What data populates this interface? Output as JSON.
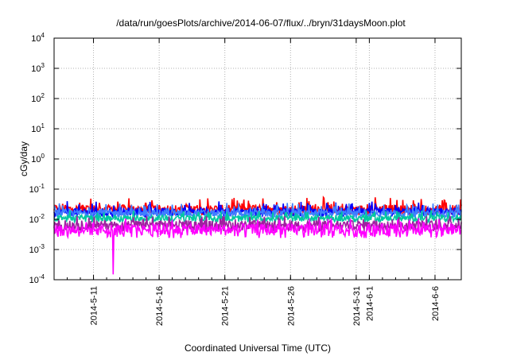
{
  "chart_data": {
    "type": "line",
    "title": "/data/run/goesPlots/archive/2014-06-07/flux/../bryn/31daysMoon.plot",
    "xlabel": "Coordinated Universal Time (UTC)",
    "ylabel": "cGy/day",
    "y_scale": "log",
    "ylim": [
      0.0001,
      10000
    ],
    "xlim": [
      "2014-05-08",
      "2014-06-08"
    ],
    "grid": true,
    "legend": "none",
    "y_ticks": [
      {
        "base": "10",
        "exp": "-4"
      },
      {
        "base": "10",
        "exp": "-3"
      },
      {
        "base": "10",
        "exp": "-2"
      },
      {
        "base": "10",
        "exp": "-1"
      },
      {
        "base": "10",
        "exp": "0"
      },
      {
        "base": "10",
        "exp": "1"
      },
      {
        "base": "10",
        "exp": "2"
      },
      {
        "base": "10",
        "exp": "3"
      },
      {
        "base": "10",
        "exp": "4"
      }
    ],
    "x_ticks": [
      {
        "date": "2014-05-11",
        "label": "2014-5-11"
      },
      {
        "date": "2014-05-16",
        "label": "2014-5-16"
      },
      {
        "date": "2014-05-21",
        "label": "2014-5-21"
      },
      {
        "date": "2014-05-26",
        "label": "2014-5-26"
      },
      {
        "date": "2014-05-31",
        "label": "2014-5-31"
      },
      {
        "date": "2014-06-01",
        "label": "2014-6-1"
      },
      {
        "date": "2014-06-06",
        "label": "2014-6-6"
      }
    ],
    "series": [
      {
        "color": "#ff0000",
        "typical": 0.022,
        "peak": 0.055,
        "trough": 0.014
      },
      {
        "color": "#0000ff",
        "typical": 0.018,
        "peak": 0.04,
        "trough": 0.012
      },
      {
        "color": "#3f7fff",
        "typical": 0.016,
        "peak": 0.035,
        "trough": 0.011
      },
      {
        "color": "#00c8a0",
        "typical": 0.011,
        "peak": 0.02,
        "trough": 0.008
      },
      {
        "color": "#a020a0",
        "typical": 0.0065,
        "peak": 0.013,
        "trough": 0.004
      },
      {
        "color": "#ff00ff",
        "typical": 0.0045,
        "peak": 0.011,
        "trough": 0.0024
      }
    ],
    "dip": {
      "date": "2014-05-12",
      "value": 0.00015
    }
  }
}
